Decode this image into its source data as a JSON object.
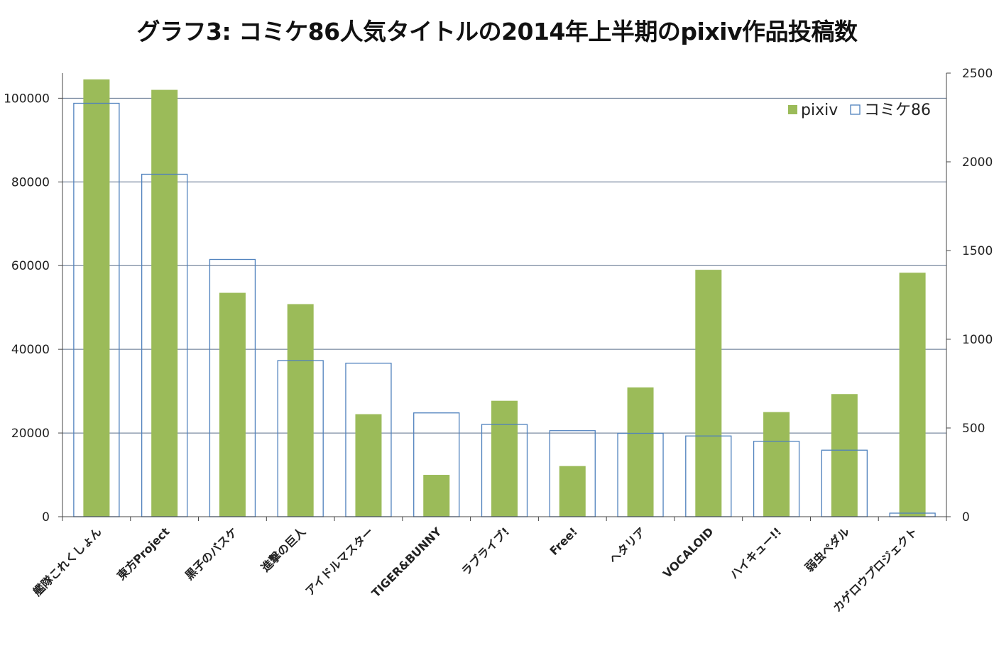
{
  "chart_data": {
    "type": "bar",
    "title": "グラフ3: コミケ86人気タイトルの2014年上半期のpixiv作品投稿数",
    "categories": [
      "艦隊これくしょん",
      "東方Project",
      "黒子のバスケ",
      "進撃の巨人",
      "アイドルマスター",
      "TIGER&BUNNY",
      "ラブライブ!",
      "Free!",
      "ヘタリア",
      "VOCALOID",
      "ハイキュー!!",
      "弱虫ペダル",
      "カゲロウプロジェクト"
    ],
    "series": [
      {
        "name": "pixiv",
        "axis": "left",
        "style": "filled",
        "color": "#9bbb59",
        "values": [
          104500,
          102000,
          53500,
          50800,
          24500,
          10000,
          27700,
          12100,
          30900,
          59000,
          25000,
          29300,
          58300
        ]
      },
      {
        "name": "コミケ86",
        "axis": "right",
        "style": "outline",
        "color": "#4f81bd",
        "values": [
          2330,
          1930,
          1450,
          880,
          865,
          585,
          520,
          485,
          470,
          455,
          425,
          375,
          20
        ]
      }
    ],
    "y_left": {
      "range": [
        0,
        106000
      ],
      "ticks": [
        "0",
        "20000",
        "40000",
        "60000",
        "80000",
        "100000"
      ]
    },
    "y_right": {
      "range": [
        0,
        2500
      ],
      "ticks": [
        "0",
        "500",
        "1000",
        "1500",
        "2000",
        "2500"
      ]
    },
    "grid": true,
    "legend_position": "top-right"
  }
}
